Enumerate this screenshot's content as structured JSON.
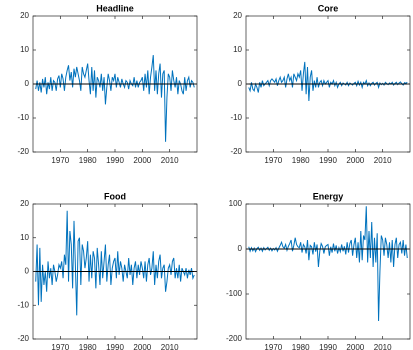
{
  "chart_data": [
    {
      "type": "line",
      "title": "Headline",
      "color": "#0072BD",
      "zero_line": 0,
      "xlim": [
        1960,
        2020
      ],
      "xticks": [
        1970,
        1980,
        1990,
        2000,
        2010
      ],
      "ylim": [
        -20,
        20
      ],
      "yticks": [
        -20,
        -10,
        0,
        10,
        20
      ],
      "x": [
        1961,
        1961.5,
        1962,
        1962.5,
        1963,
        1963.5,
        1964,
        1964.5,
        1965,
        1965.5,
        1966,
        1966.5,
        1967,
        1967.5,
        1968,
        1968.5,
        1969,
        1969.5,
        1970,
        1970.5,
        1971,
        1971.5,
        1972,
        1972.5,
        1973,
        1973.5,
        1974,
        1974.5,
        1975,
        1975.5,
        1976,
        1976.5,
        1977,
        1977.5,
        1978,
        1978.5,
        1979,
        1979.5,
        1980,
        1980.5,
        1981,
        1981.5,
        1982,
        1982.5,
        1983,
        1983.5,
        1984,
        1984.5,
        1985,
        1985.5,
        1986,
        1986.5,
        1987,
        1987.5,
        1988,
        1988.5,
        1989,
        1989.5,
        1990,
        1990.5,
        1991,
        1991.5,
        1992,
        1992.5,
        1993,
        1993.5,
        1994,
        1994.5,
        1995,
        1995.5,
        1996,
        1996.5,
        1997,
        1997.5,
        1998,
        1998.5,
        1999,
        1999.5,
        2000,
        2000.5,
        2001,
        2001.5,
        2002,
        2002.5,
        2003,
        2003.5,
        2004,
        2004.5,
        2005,
        2005.5,
        2006,
        2006.5,
        2007,
        2007.5,
        2008,
        2008.5,
        2009,
        2009.5,
        2010,
        2010.5,
        2011,
        2011.5,
        2012,
        2012.5,
        2013,
        2013.5,
        2014,
        2014.5,
        2015,
        2015.5,
        2016,
        2016.5,
        2017,
        2017.5,
        2018,
        2018.5,
        2019
      ],
      "values": [
        -1.5,
        1,
        -2,
        0.5,
        -2.5,
        1.5,
        -1,
        2,
        -3,
        0.5,
        -1.5,
        2,
        -2,
        1,
        0.5,
        -2,
        1.5,
        2.5,
        -1,
        3,
        1.5,
        -2,
        2,
        4,
        5.5,
        1,
        3.5,
        -1,
        4.5,
        2,
        5,
        3,
        1,
        -2,
        5,
        3,
        2,
        4,
        6,
        1,
        -3,
        5,
        -2,
        4,
        -4,
        2,
        1,
        -1,
        3,
        -2,
        2,
        -6,
        -1,
        3,
        1,
        -2,
        2,
        1,
        3,
        -1,
        2,
        0.5,
        -1,
        1.5,
        0,
        -1,
        1,
        0.5,
        -1.5,
        1,
        0,
        -0.5,
        2,
        -1,
        1,
        -1,
        0.5,
        1,
        2,
        -2,
        3,
        -1,
        4,
        -3,
        2,
        5,
        8.5,
        -2,
        4,
        -3,
        3,
        6,
        -4,
        3,
        4,
        -17,
        -4,
        3,
        2,
        -2,
        4,
        1,
        -1,
        2,
        -3,
        1,
        0,
        -2,
        -3,
        2,
        -2,
        1,
        2,
        -1,
        1,
        0.5,
        -1
      ]
    },
    {
      "type": "line",
      "title": "Core",
      "color": "#0072BD",
      "zero_line": 0,
      "xlim": [
        1960,
        2020
      ],
      "xticks": [
        1970,
        1980,
        1990,
        2000,
        2010
      ],
      "ylim": [
        -20,
        20
      ],
      "yticks": [
        -20,
        -10,
        0,
        10,
        20
      ],
      "x": [
        1961,
        1961.5,
        1962,
        1962.5,
        1963,
        1963.5,
        1964,
        1964.5,
        1965,
        1965.5,
        1966,
        1966.5,
        1967,
        1967.5,
        1968,
        1968.5,
        1969,
        1969.5,
        1970,
        1970.5,
        1971,
        1971.5,
        1972,
        1972.5,
        1973,
        1973.5,
        1974,
        1974.5,
        1975,
        1975.5,
        1976,
        1976.5,
        1977,
        1977.5,
        1978,
        1978.5,
        1979,
        1979.5,
        1980,
        1980.5,
        1981,
        1981.5,
        1982,
        1982.5,
        1983,
        1983.5,
        1984,
        1984.5,
        1985,
        1985.5,
        1986,
        1986.5,
        1987,
        1987.5,
        1988,
        1988.5,
        1989,
        1989.5,
        1990,
        1990.5,
        1991,
        1991.5,
        1992,
        1992.5,
        1993,
        1993.5,
        1994,
        1994.5,
        1995,
        1995.5,
        1996,
        1996.5,
        1997,
        1997.5,
        1998,
        1998.5,
        1999,
        1999.5,
        2000,
        2000.5,
        2001,
        2001.5,
        2002,
        2002.5,
        2003,
        2003.5,
        2004,
        2004.5,
        2005,
        2005.5,
        2006,
        2006.5,
        2007,
        2007.5,
        2008,
        2008.5,
        2009,
        2009.5,
        2010,
        2010.5,
        2011,
        2011.5,
        2012,
        2012.5,
        2013,
        2013.5,
        2014,
        2014.5,
        2015,
        2015.5,
        2016,
        2016.5,
        2017,
        2017.5,
        2018,
        2018.5,
        2019
      ],
      "values": [
        -1,
        -2,
        0.5,
        -1.5,
        -2,
        0,
        -1,
        -2.5,
        0.5,
        -1,
        1,
        -0.5,
        0,
        0.5,
        1,
        -0.5,
        1,
        1.5,
        1,
        0.5,
        1.5,
        -0.5,
        1,
        2,
        0.5,
        1,
        2,
        -1,
        1.5,
        3,
        1,
        2,
        -1,
        3,
        2,
        1,
        3,
        2,
        4,
        -2,
        3,
        6.5,
        -3,
        5,
        -5,
        2,
        4,
        -2,
        1,
        -1,
        2,
        -1,
        0.5,
        1,
        -0.5,
        1,
        0,
        0.5,
        1,
        -1,
        0.5,
        0,
        1,
        -0.5,
        0.5,
        -1,
        0,
        0.5,
        -0.5,
        0.3,
        0,
        -0.3,
        0.5,
        -0.5,
        0.3,
        0,
        -0.3,
        0.2,
        0.5,
        -0.5,
        0.8,
        -0.3,
        0.5,
        -1,
        0.5,
        0,
        1,
        -0.5,
        0.3,
        -0.5,
        0.2,
        0.5,
        -0.3,
        0.2,
        0.5,
        -1,
        0.3,
        -0.2,
        0.2,
        -0.3,
        0.5,
        0.1,
        -0.2,
        0.3,
        0,
        0.5,
        -0.3,
        0.2,
        0.5,
        -0.2,
        0.3,
        0.6,
        0.1,
        -0.3,
        0.4,
        0.2,
        0.5
      ]
    },
    {
      "type": "line",
      "title": "Food",
      "color": "#0072BD",
      "zero_line": 0,
      "xlim": [
        1960,
        2020
      ],
      "xticks": [
        1970,
        1980,
        1990,
        2000,
        2010
      ],
      "ylim": [
        -20,
        20
      ],
      "yticks": [
        -20,
        -10,
        0,
        10,
        20
      ],
      "x": [
        1961,
        1961.5,
        1962,
        1962.5,
        1963,
        1963.5,
        1964,
        1964.5,
        1965,
        1965.5,
        1966,
        1966.5,
        1967,
        1967.5,
        1968,
        1968.5,
        1969,
        1969.5,
        1970,
        1970.5,
        1971,
        1971.5,
        1972,
        1972.5,
        1973,
        1973.5,
        1974,
        1974.5,
        1975,
        1975.5,
        1976,
        1976.5,
        1977,
        1977.5,
        1978,
        1978.5,
        1979,
        1979.5,
        1980,
        1980.5,
        1981,
        1981.5,
        1982,
        1982.5,
        1983,
        1983.5,
        1984,
        1984.5,
        1985,
        1985.5,
        1986,
        1986.5,
        1987,
        1987.5,
        1988,
        1988.5,
        1989,
        1989.5,
        1990,
        1990.5,
        1991,
        1991.5,
        1992,
        1992.5,
        1993,
        1993.5,
        1994,
        1994.5,
        1995,
        1995.5,
        1996,
        1996.5,
        1997,
        1997.5,
        1998,
        1998.5,
        1999,
        1999.5,
        2000,
        2000.5,
        2001,
        2001.5,
        2002,
        2002.5,
        2003,
        2003.5,
        2004,
        2004.5,
        2005,
        2005.5,
        2006,
        2006.5,
        2007,
        2007.5,
        2008,
        2008.5,
        2009,
        2009.5,
        2010,
        2010.5,
        2011,
        2011.5,
        2012,
        2012.5,
        2013,
        2013.5,
        2014,
        2014.5,
        2015,
        2015.5,
        2016,
        2016.5,
        2017,
        2017.5,
        2018,
        2018.5,
        2019
      ],
      "values": [
        -3,
        8,
        -10,
        7,
        -9,
        2,
        -4,
        0,
        -6,
        3,
        -2,
        1,
        -4,
        2,
        0,
        -3,
        -1,
        2,
        1,
        3,
        -2,
        5,
        2,
        18,
        -3,
        12,
        8,
        -5,
        15,
        2,
        -13,
        9,
        10,
        -4,
        8,
        6,
        1,
        4,
        9,
        -3,
        5,
        -2,
        6,
        4,
        -5,
        7,
        2,
        -4,
        6,
        -2,
        3,
        8,
        -3,
        2,
        5,
        -4,
        1,
        3,
        4,
        -2,
        6,
        -1,
        3,
        1,
        -3,
        2,
        0,
        -2,
        4,
        -1,
        2,
        -4,
        1,
        3,
        -2,
        2,
        -1,
        3,
        1,
        -2,
        3,
        -3,
        2,
        4,
        -1,
        1,
        6,
        -4,
        2,
        -2,
        3,
        5,
        -2,
        1,
        2,
        -6,
        -3,
        1,
        2,
        -1,
        3,
        4,
        -2,
        1,
        -2,
        2,
        -3,
        1,
        0,
        -1,
        1,
        -2,
        0.5,
        -1,
        1,
        -2,
        -1
      ]
    },
    {
      "type": "line",
      "title": "Energy",
      "color": "#0072BD",
      "zero_line": 0,
      "xlim": [
        1960,
        2020
      ],
      "xticks": [
        1970,
        1980,
        1990,
        2000,
        2010
      ],
      "ylim": [
        -200,
        100
      ],
      "yticks": [
        -200,
        -100,
        0,
        100
      ],
      "x": [
        1961,
        1961.5,
        1962,
        1962.5,
        1963,
        1963.5,
        1964,
        1964.5,
        1965,
        1965.5,
        1966,
        1966.5,
        1967,
        1967.5,
        1968,
        1968.5,
        1969,
        1969.5,
        1970,
        1970.5,
        1971,
        1971.5,
        1972,
        1972.5,
        1973,
        1973.5,
        1974,
        1974.5,
        1975,
        1975.5,
        1976,
        1976.5,
        1977,
        1977.5,
        1978,
        1978.5,
        1979,
        1979.5,
        1980,
        1980.5,
        1981,
        1981.5,
        1982,
        1982.5,
        1983,
        1983.5,
        1984,
        1984.5,
        1985,
        1985.5,
        1986,
        1986.5,
        1987,
        1987.5,
        1988,
        1988.5,
        1989,
        1989.5,
        1990,
        1990.5,
        1991,
        1991.5,
        1992,
        1992.5,
        1993,
        1993.5,
        1994,
        1994.5,
        1995,
        1995.5,
        1996,
        1996.5,
        1997,
        1997.5,
        1998,
        1998.5,
        1999,
        1999.5,
        2000,
        2000.5,
        2001,
        2001.5,
        2002,
        2002.5,
        2003,
        2003.5,
        2004,
        2004.5,
        2005,
        2005.5,
        2006,
        2006.5,
        2007,
        2007.5,
        2008,
        2008.5,
        2009,
        2009.5,
        2010,
        2010.5,
        2011,
        2011.5,
        2012,
        2012.5,
        2013,
        2013.5,
        2014,
        2014.5,
        2015,
        2015.5,
        2016,
        2016.5,
        2017,
        2017.5,
        2018,
        2018.5,
        2019
      ],
      "values": [
        5,
        -5,
        3,
        -4,
        2,
        -6,
        1,
        4,
        -3,
        2,
        -5,
        3,
        -2,
        1,
        4,
        -3,
        2,
        -4,
        1,
        -2,
        3,
        -5,
        2,
        8,
        15,
        5,
        2,
        10,
        -3,
        6,
        12,
        20,
        -5,
        8,
        25,
        10,
        5,
        3,
        15,
        -8,
        10,
        5,
        -10,
        20,
        -25,
        8,
        5,
        -12,
        15,
        -6,
        10,
        -40,
        -5,
        12,
        6,
        -10,
        5,
        8,
        10,
        -15,
        5,
        -8,
        12,
        -5,
        8,
        -10,
        3,
        -6,
        10,
        -5,
        6,
        -12,
        15,
        -8,
        12,
        20,
        -15,
        10,
        25,
        -20,
        15,
        -30,
        40,
        -25,
        30,
        20,
        95,
        -30,
        40,
        -20,
        60,
        -40,
        25,
        -30,
        35,
        -160,
        -50,
        30,
        20,
        -15,
        25,
        10,
        -20,
        15,
        -30,
        20,
        -40,
        10,
        25,
        -20,
        10,
        15,
        -10,
        20,
        -15,
        10,
        -20
      ]
    }
  ]
}
